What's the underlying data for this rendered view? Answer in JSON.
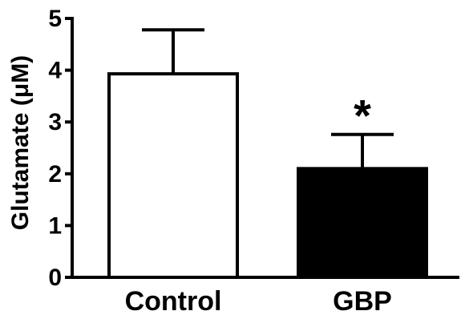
{
  "chart_data": {
    "type": "bar",
    "categories": [
      "Control",
      "GBP"
    ],
    "values": [
      3.93,
      2.1
    ],
    "errors_upper": [
      0.85,
      0.66
    ],
    "bar_colors": [
      "#ffffff",
      "#000000"
    ],
    "significance": [
      "",
      "*"
    ],
    "title": "",
    "xlabel": "",
    "ylabel": "Glutamate (μM)",
    "ylim": [
      0,
      5
    ],
    "yticks": [
      "0",
      "1",
      "2",
      "3",
      "4",
      "5"
    ],
    "grid": false,
    "legend": "none"
  }
}
